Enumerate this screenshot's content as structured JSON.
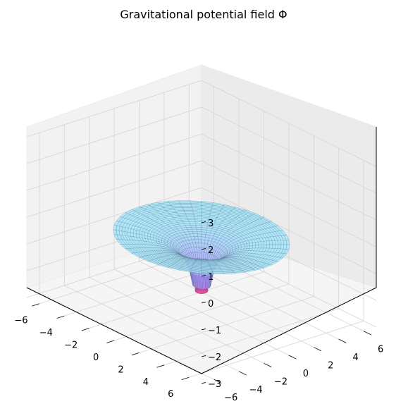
{
  "chart_data": {
    "type": "surface3d",
    "title": "Gravitational potential field Φ",
    "x_ticks": [
      "−6",
      "−4",
      "−2",
      "0",
      "2",
      "4",
      "6"
    ],
    "y_ticks": [
      "−6",
      "−4",
      "−2",
      "0",
      "2",
      "4",
      "6"
    ],
    "z_ticks": [
      "−3",
      "−2",
      "−1",
      "0",
      "1",
      "2",
      "3"
    ],
    "xlim": [
      -7,
      7
    ],
    "ylim": [
      -7,
      7
    ],
    "zlim": [
      -3,
      3
    ],
    "grid": true,
    "view": {
      "elev": 30,
      "azim": -45
    },
    "surface": {
      "function": "Phi(r) = -1/r",
      "r_range": [
        0.5,
        5
      ],
      "colormap": "cool",
      "alpha": 0.5
    },
    "colors": {
      "pane_left": "#f2f2f2",
      "pane_right": "#ebebeb",
      "pane_floor": "#f5f5f5",
      "gridline": "#d4d4d4",
      "surface_light": "#a9e6f8",
      "surface_core": "#a87cf6",
      "funnel_tip": "#e0509c"
    }
  }
}
